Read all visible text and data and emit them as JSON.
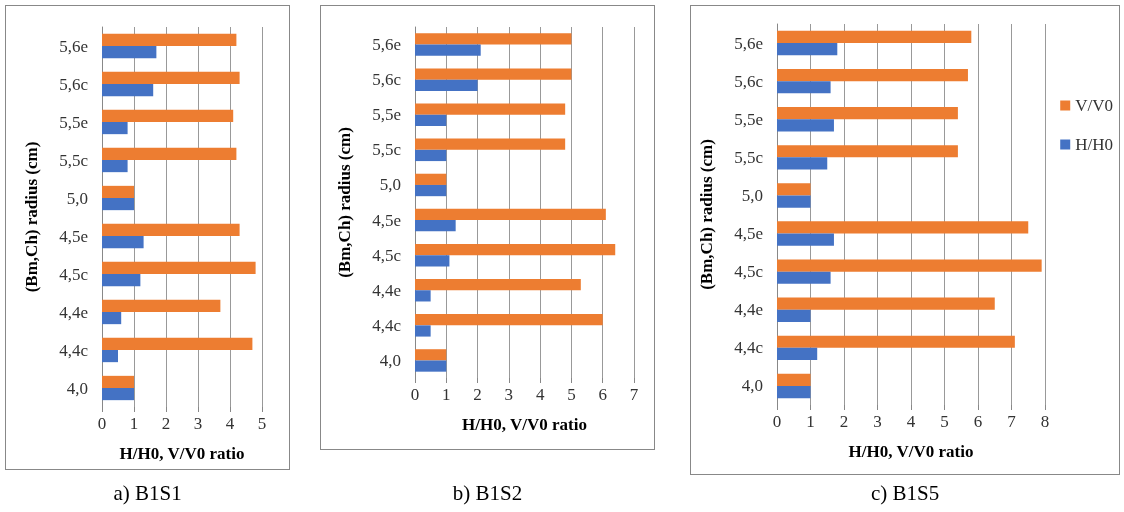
{
  "chart_data": [
    {
      "type": "bar",
      "orientation": "horizontal",
      "title": "a) B1S1",
      "xlabel": "H/H0, V/V0 ratio",
      "ylabel": "(Bm,Ch) radius (cm)",
      "categories": [
        "5,6e",
        "5,6c",
        "5,5e",
        "5,5c",
        "5,0",
        "4,5e",
        "4,5c",
        "4,4e",
        "4,4c",
        "4,0"
      ],
      "series": [
        {
          "color": "#ed7d31",
          "values": [
            4.2,
            4.3,
            4.1,
            4.2,
            1,
            4.3,
            4.8,
            3.7,
            4.7,
            1
          ]
        },
        {
          "color": "#4472c4",
          "values": [
            1.7,
            1.6,
            0.8,
            0.8,
            1,
            1.3,
            1.2,
            0.6,
            0.5,
            1
          ]
        }
      ],
      "xlim": [
        0,
        5
      ],
      "xticks": [
        0,
        1,
        2,
        3,
        4,
        5
      ],
      "grid": "x",
      "legend": false
    },
    {
      "type": "bar",
      "orientation": "horizontal",
      "title": "b) B1S2",
      "xlabel": "H/H0, V/V0 ratio",
      "ylabel": "(Bm,Ch) radius (cm)",
      "categories": [
        "5,6e",
        "5,6c",
        "5,5e",
        "5,5c",
        "5,0",
        "4,5e",
        "4,5c",
        "4,4e",
        "4,4c",
        "4,0"
      ],
      "series": [
        {
          "color": "#ed7d31",
          "values": [
            5.0,
            5.0,
            4.8,
            4.8,
            1,
            6.1,
            6.4,
            5.3,
            6.0,
            1
          ]
        },
        {
          "color": "#4472c4",
          "values": [
            2.1,
            2.0,
            1.0,
            1.0,
            1,
            1.3,
            1.1,
            0.5,
            0.5,
            1
          ]
        }
      ],
      "xlim": [
        0,
        7
      ],
      "xticks": [
        0,
        1,
        2,
        3,
        4,
        5,
        6,
        7
      ],
      "grid": "x",
      "legend": false
    },
    {
      "type": "bar",
      "orientation": "horizontal",
      "title": "c) B1S5",
      "xlabel": "H/H0, V/V0 ratio",
      "ylabel": "(Bm,Ch) radius (cm)",
      "categories": [
        "5,6e",
        "5,6c",
        "5,5e",
        "5,5c",
        "5,0",
        "4,5e",
        "4,5c",
        "4,4e",
        "4,4c",
        "4,0"
      ],
      "series": [
        {
          "name": "V/V0",
          "color": "#ed7d31",
          "values": [
            5.8,
            5.7,
            5.4,
            5.4,
            1,
            7.5,
            7.9,
            6.5,
            7.1,
            1
          ]
        },
        {
          "name": "H/H0",
          "color": "#4472c4",
          "values": [
            1.8,
            1.6,
            1.7,
            1.5,
            1,
            1.7,
            1.6,
            1.0,
            1.2,
            1
          ]
        }
      ],
      "xlim": [
        0,
        8
      ],
      "xticks": [
        0,
        1,
        2,
        3,
        4,
        5,
        6,
        7,
        8
      ],
      "grid": "x",
      "legend": "right"
    }
  ]
}
